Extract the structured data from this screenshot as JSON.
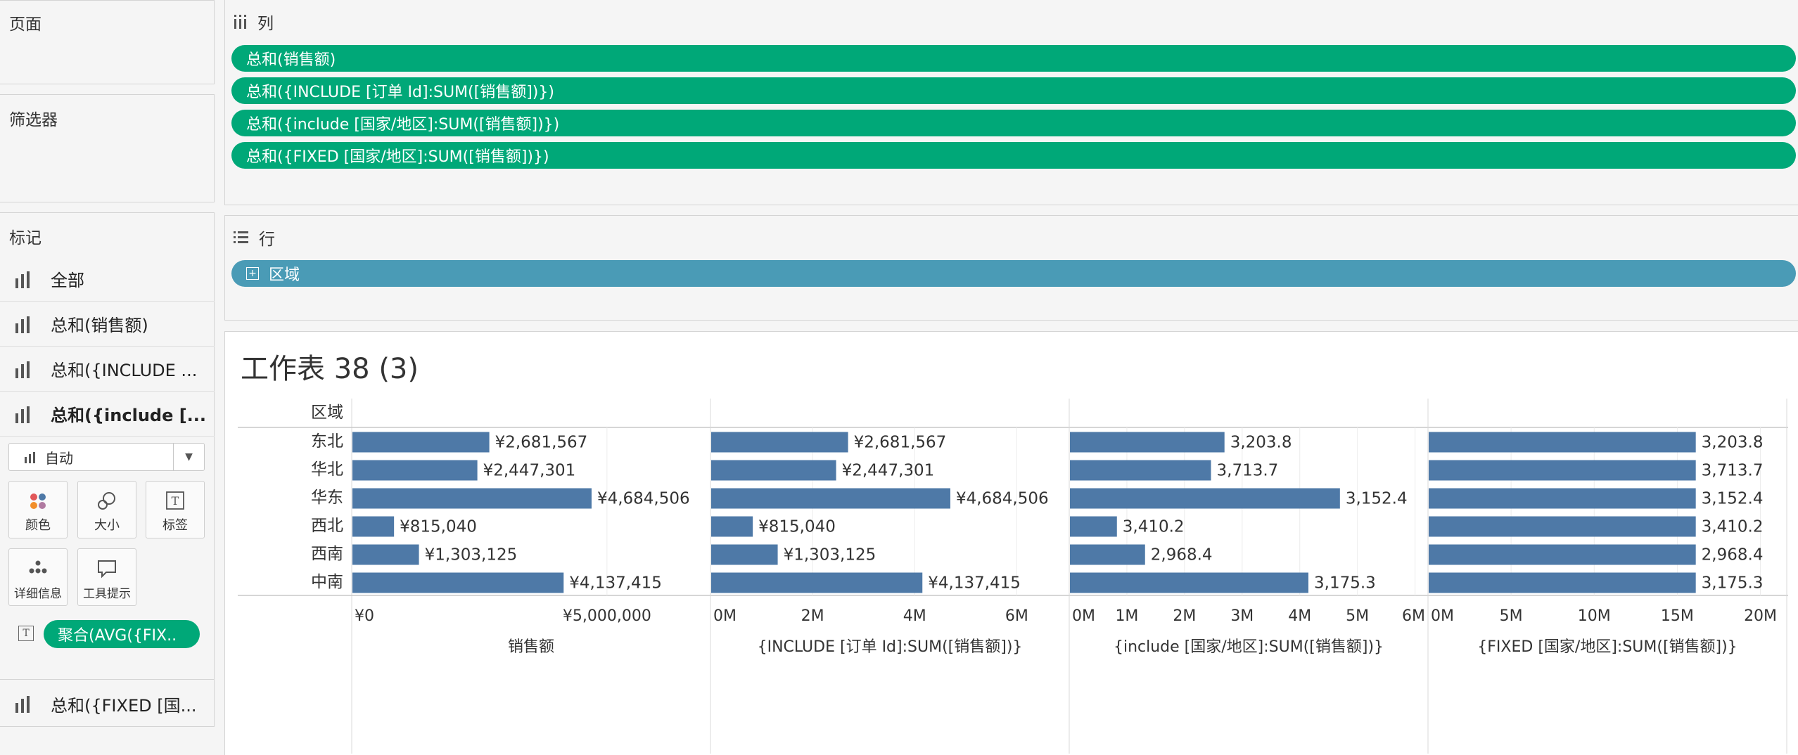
{
  "left_panel": {
    "pages_title": "页面",
    "filters_title": "筛选器",
    "marks_title": "标记",
    "marks": [
      {
        "label": "全部"
      },
      {
        "label": "总和(销售额)"
      },
      {
        "label": "总和({INCLUDE ..."
      },
      {
        "label": "总和({include [..."
      }
    ],
    "mark_type": "自动",
    "tiles": {
      "color": "颜色",
      "size": "大小",
      "label": "标签",
      "detail": "详细信息",
      "tooltip": "工具提示"
    },
    "agg_pill": "聚合(AVG({FIX..",
    "last_mark": "总和({FIXED [国..."
  },
  "columns_shelf": {
    "title": "列",
    "pills": [
      "总和(销售额)",
      "总和({INCLUDE [订单 Id]:SUM([销售额])})",
      "总和({include [国家/地区]:SUM([销售额])})",
      "总和({FIXED [国家/地区]:SUM([销售额])})"
    ]
  },
  "rows_shelf": {
    "title": "行",
    "pill": "区域"
  },
  "worksheet": {
    "title": "工作表 38 (3)",
    "row_header": "区域"
  },
  "colors": {
    "green": "#00a878",
    "blue_pill": "#4a9bb6",
    "bar": "#4e79a7"
  },
  "chart_data": {
    "type": "bar",
    "orientation": "horizontal",
    "categories": [
      "东北",
      "华北",
      "华东",
      "西北",
      "西南",
      "中南"
    ],
    "panels": [
      {
        "xlabel": "销售额",
        "values": [
          2681567,
          2447301,
          4684506,
          815040,
          1303125,
          4137415
        ],
        "data_labels": [
          "¥2,681,567",
          "¥2,447,301",
          "¥4,684,506",
          "¥815,040",
          "¥1,303,125",
          "¥4,137,415"
        ],
        "xlim": [
          0,
          7000000
        ],
        "ticks": [
          {
            "v": 0,
            "t": "¥0"
          },
          {
            "v": 5000000,
            "t": "¥5,000,000"
          }
        ]
      },
      {
        "xlabel": "{INCLUDE [订单 Id]:SUM([销售额])}",
        "values": [
          2681567,
          2447301,
          4684506,
          815040,
          1303125,
          4137415
        ],
        "data_labels": [
          "¥2,681,567",
          "¥2,447,301",
          "¥4,684,506",
          "¥815,040",
          "¥1,303,125",
          "¥4,137,415"
        ],
        "xlim": [
          0,
          7000000
        ],
        "ticks": [
          {
            "v": 0,
            "t": "0M"
          },
          {
            "v": 2000000,
            "t": "2M"
          },
          {
            "v": 4000000,
            "t": "4M"
          },
          {
            "v": 6000000,
            "t": "6M"
          }
        ]
      },
      {
        "xlabel": "{include [国家/地区]:SUM([销售额])}",
        "values": [
          2681567,
          2447301,
          4684506,
          815040,
          1303125,
          4137415
        ],
        "data_labels": [
          "3,203.8",
          "3,713.7",
          "3,152.4",
          "3,410.2",
          "2,968.4",
          "3,175.3"
        ],
        "xlim": [
          0,
          6200000
        ],
        "ticks": [
          {
            "v": 0,
            "t": "0M"
          },
          {
            "v": 1000000,
            "t": "1M"
          },
          {
            "v": 2000000,
            "t": "2M"
          },
          {
            "v": 3000000,
            "t": "3M"
          },
          {
            "v": 4000000,
            "t": "4M"
          },
          {
            "v": 5000000,
            "t": "5M"
          },
          {
            "v": 6000000,
            "t": "6M"
          }
        ]
      },
      {
        "xlabel": "{FIXED [国家/地区]:SUM([销售额])}",
        "values": [
          16069000,
          16069000,
          16069000,
          16069000,
          16069000,
          16069000
        ],
        "data_labels": [
          "3,203.8",
          "3,713.7",
          "3,152.4",
          "3,410.2",
          "2,968.4",
          "3,175.3"
        ],
        "xlim": [
          0,
          21500000
        ],
        "ticks": [
          {
            "v": 0,
            "t": "0M"
          },
          {
            "v": 5000000,
            "t": "5M"
          },
          {
            "v": 10000000,
            "t": "10M"
          },
          {
            "v": 15000000,
            "t": "15M"
          },
          {
            "v": 20000000,
            "t": "20M"
          }
        ]
      }
    ]
  }
}
